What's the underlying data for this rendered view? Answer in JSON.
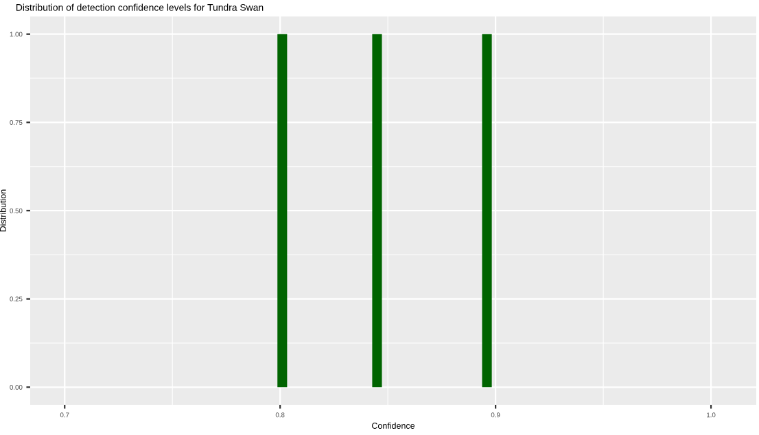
{
  "chart_data": {
    "type": "bar",
    "title": "Distribution of detection confidence levels for Tundra Swan",
    "xlabel": "Confidence",
    "ylabel": "Distribution",
    "x": [
      0.801,
      0.845,
      0.896
    ],
    "values": [
      1,
      1,
      1
    ],
    "color": "#006400",
    "xlim": [
      0.684,
      1.021
    ],
    "xticks": [
      0.7,
      0.8,
      0.9,
      {
        "value": 1,
        "label": "1.0"
      }
    ],
    "ylim": [
      -0.05,
      1.05
    ],
    "yticks": [
      {
        "value": 0,
        "label": "0.00"
      },
      {
        "value": 0.25,
        "label": "0.25"
      },
      {
        "value": 0.5,
        "label": "0.50"
      },
      {
        "value": 0.75,
        "label": "0.75"
      },
      {
        "value": 1,
        "label": "1.00"
      }
    ],
    "grid": true
  }
}
